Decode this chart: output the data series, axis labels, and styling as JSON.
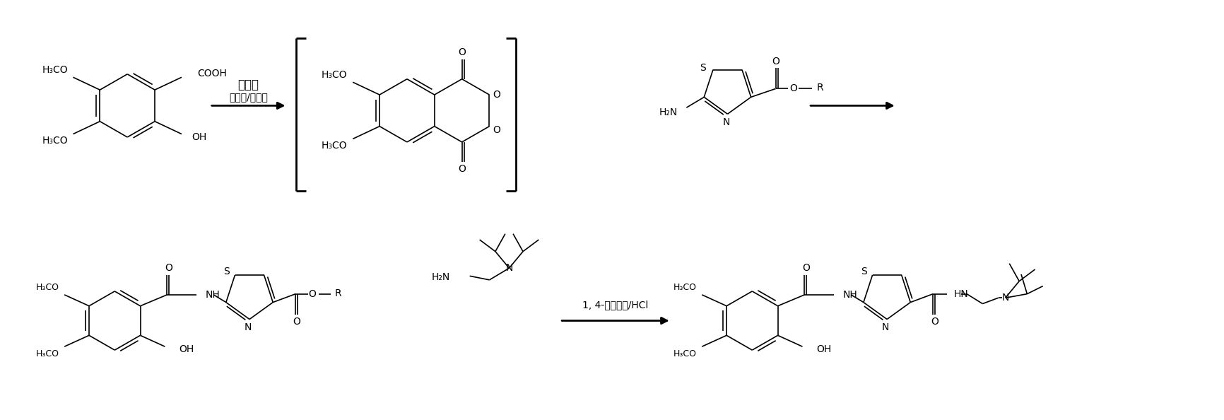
{
  "background_color": "#ffffff",
  "figsize": [
    17.33,
    5.94
  ],
  "dpi": 100,
  "cond1_line1": "有机碱",
  "cond1_line2": "三光气/双光气",
  "cond2_line1": "1, 4-二氧六环/HCl",
  "reagent_label": "H₂N",
  "H3CO": "H₃CO",
  "COOH": "COOH",
  "OH": "OH",
  "NH": "NH",
  "HN": "HN",
  "S_label": "S",
  "N_label": "N",
  "O_label": "O",
  "R_label": "R",
  "NH2_label": "H₂N",
  "line_color": "#000000",
  "lw": 1.2
}
